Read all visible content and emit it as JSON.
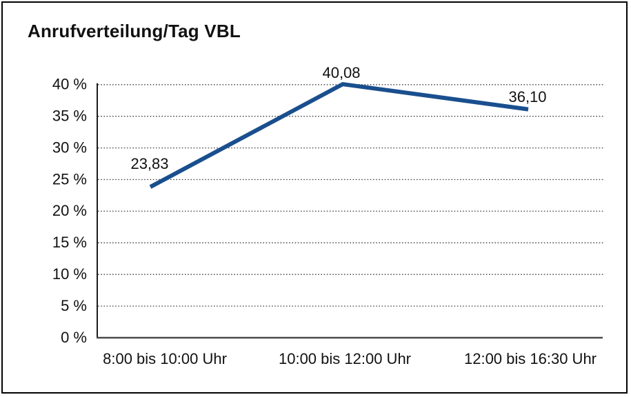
{
  "title": "Anrufverteilung/Tag VBL",
  "chart_data": {
    "type": "line",
    "title": "Anrufverteilung/Tag VBL",
    "categories": [
      "8:00 bis 10:00 Uhr",
      "10:00 bis 12:00 Uhr",
      "12:00 bis 16:30 Uhr"
    ],
    "series": [
      {
        "name": "Anrufverteilung/Tag VBL",
        "values": [
          23.83,
          40.08,
          36.1
        ]
      }
    ],
    "point_labels": [
      "23,83",
      "40,08",
      "36,10"
    ],
    "y_tick_labels": [
      "0 %",
      "5 %",
      "10 %",
      "15 %",
      "20 %",
      "25 %",
      "30 %",
      "35 %",
      "40 %"
    ],
    "ylim": [
      0,
      40
    ],
    "y_step": 5,
    "xlabel": "",
    "ylabel": "",
    "grid": "dotted-horizontal",
    "legend": "none",
    "line_color": "#1A4F8E",
    "axis_color": "#1a1a1a",
    "baseline_color": "#4a4a4a",
    "grid_color": "#3c3c3c",
    "text_color": "#111111",
    "background": "#ffffff",
    "border_color": "#000000"
  }
}
